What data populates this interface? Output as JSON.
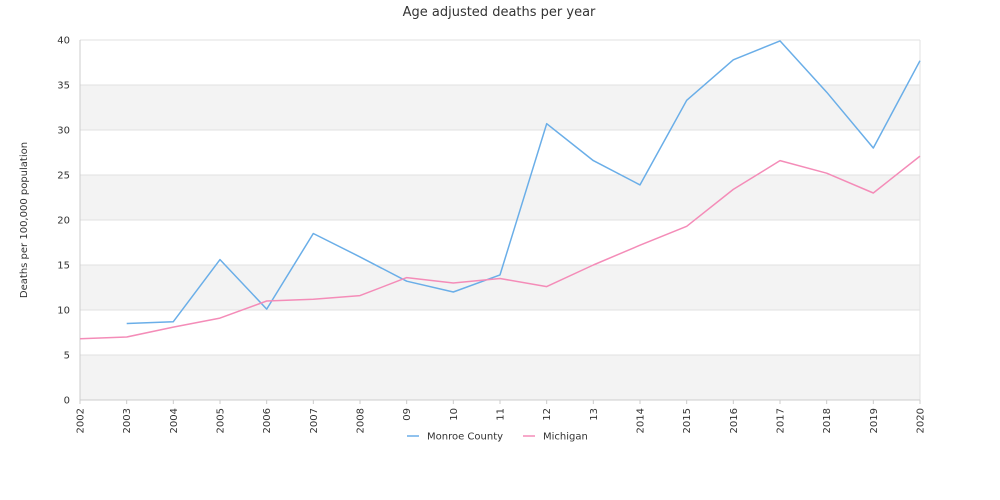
{
  "chart_data": {
    "type": "line",
    "title": "Age adjusted deaths per year",
    "xlabel": "",
    "ylabel": "Deaths per 100,000 population",
    "ylim": [
      0,
      40
    ],
    "yticks": [
      0,
      5,
      10,
      15,
      20,
      25,
      30,
      35,
      40
    ],
    "grid": true,
    "grid_bands": true,
    "legend_position": "bottom-center",
    "x": [
      "2002",
      "2003",
      "2004",
      "2005",
      "2006",
      "2007",
      "2008",
      "09",
      "10",
      "11",
      "12",
      "13",
      "2014",
      "2015",
      "2016",
      "2017",
      "2018",
      "2019",
      "2020"
    ],
    "series": [
      {
        "name": "Monroe County",
        "color": "#6aaee8",
        "values": [
          null,
          8.5,
          8.7,
          15.6,
          10.1,
          18.5,
          15.9,
          13.2,
          12.0,
          13.9,
          30.7,
          26.6,
          23.9,
          33.3,
          37.8,
          39.9,
          34.2,
          28.0,
          37.7
        ]
      },
      {
        "name": "Michigan",
        "color": "#f48cb8",
        "values": [
          6.8,
          7.0,
          8.1,
          9.1,
          11.0,
          11.2,
          11.6,
          13.6,
          13.0,
          13.5,
          12.6,
          15.0,
          17.2,
          19.3,
          23.4,
          26.6,
          25.2,
          23.0,
          27.1
        ]
      }
    ]
  }
}
